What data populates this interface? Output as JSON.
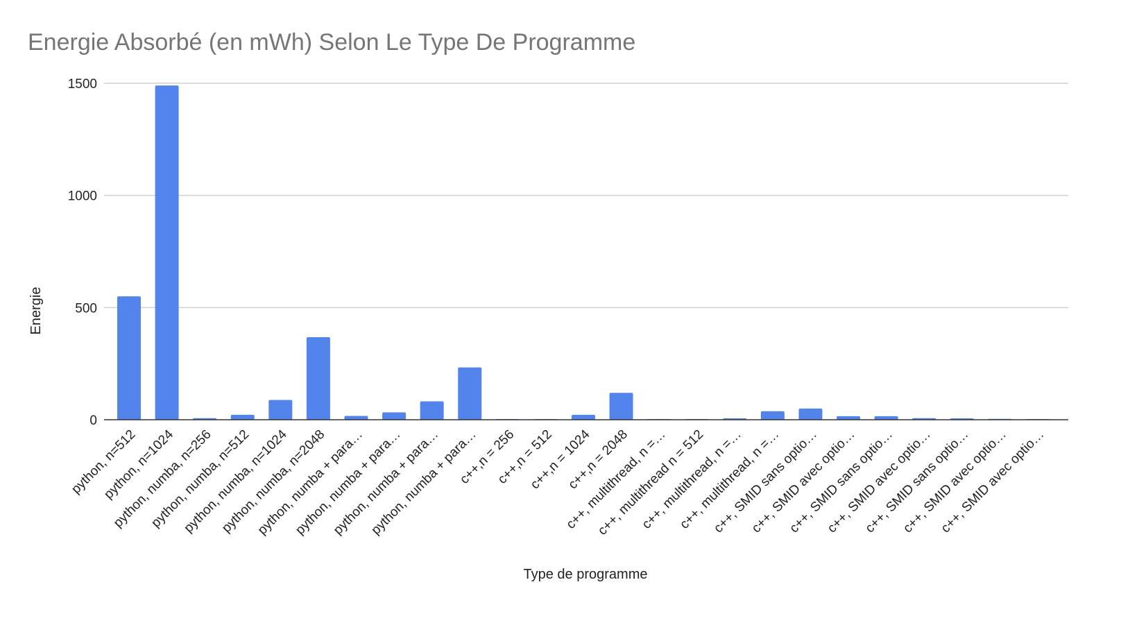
{
  "chart_data": {
    "type": "bar",
    "title": "Energie Absorbé (en mWh) Selon Le Type De Programme",
    "xlabel": "Type de programme",
    "ylabel": "Energie",
    "ylim": [
      0,
      1500
    ],
    "yticks": [
      0,
      500,
      1000,
      1500
    ],
    "grid": true,
    "bar_color": "#5384ec",
    "categories": [
      "python, n=512",
      "python, n=1024",
      "python, numba, n=256",
      "python, numba, n=512",
      "python, numba, n=1024",
      "python, numba, n=2048",
      "python, numba + para…",
      "python, numba + para…",
      "python, numba + para…",
      "python, numba + para…",
      "c++,n = 256",
      "c++,n = 512",
      "c++,n = 1024",
      "c++,n = 2048",
      "c++, multithread, n =…",
      "c++, multithread n = 512",
      "c++, multithread, n =…",
      "c++, multithread, n =…",
      "c++, SMID sans optio…",
      "c++, SMID avec optio…",
      "c++, SMID sans optio…",
      "c++, SMID avec optio…",
      "c++, SMID sans optio…",
      "c++, SMID avec optio…",
      "c++, SMID avec optio…"
    ],
    "values": [
      550,
      1490,
      7,
      22,
      88,
      368,
      17,
      33,
      82,
      233,
      0.5,
      3,
      22,
      120,
      0.5,
      0.5,
      6,
      38,
      50,
      16,
      16,
      7,
      6,
      4,
      3
    ]
  }
}
